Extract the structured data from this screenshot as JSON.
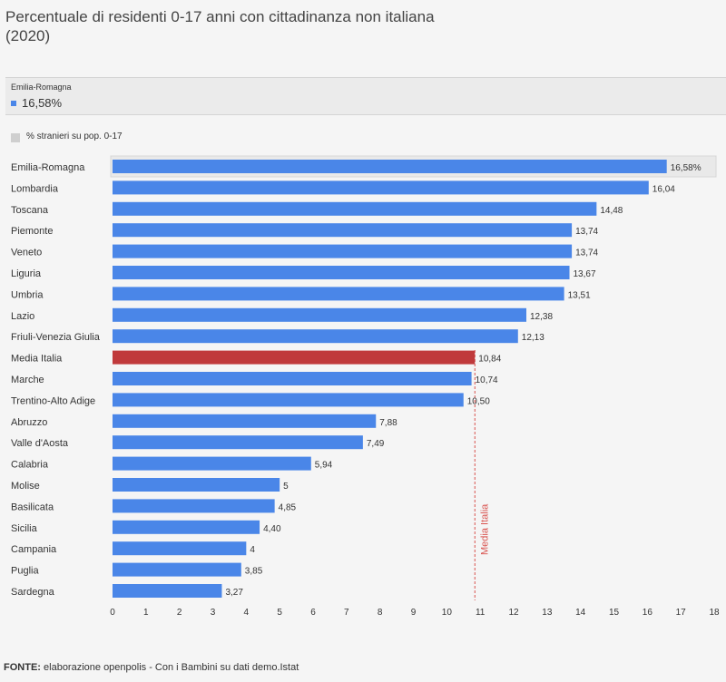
{
  "title": "Percentuale di residenti 0-17 anni con cittadinanza non italiana (2020)",
  "tooltip": {
    "region": "Emilia-Romagna",
    "value": "16,58%",
    "swatch_color": "#4a86e8"
  },
  "legend": {
    "label": "% stranieri su pop. 0-17",
    "swatch_color": "#cfcfcf"
  },
  "chart_data": {
    "type": "bar",
    "orientation": "horizontal",
    "categories": [
      "Emilia-Romagna",
      "Lombardia",
      "Toscana",
      "Piemonte",
      "Veneto",
      "Liguria",
      "Umbria",
      "Lazio",
      "Friuli-Venezia Giulia",
      "Media Italia",
      "Marche",
      "Trentino-Alto Adige",
      "Abruzzo",
      "Valle d'Aosta",
      "Calabria",
      "Molise",
      "Basilicata",
      "Sicilia",
      "Campania",
      "Puglia",
      "Sardegna"
    ],
    "values": [
      16.58,
      16.04,
      14.48,
      13.74,
      13.74,
      13.67,
      13.51,
      12.38,
      12.13,
      10.84,
      10.74,
      10.5,
      7.88,
      7.49,
      5.94,
      5,
      4.85,
      4.4,
      4,
      3.85,
      3.27
    ],
    "data_labels": [
      "16,58%",
      "16,04",
      "14,48",
      "13,74",
      "13,74",
      "13,67",
      "13,51",
      "12,38",
      "12,13",
      "10,84",
      "10,74",
      "10,50",
      "7,88",
      "7,49",
      "5,94",
      "5",
      "4,85",
      "4,40",
      "4",
      "3,85",
      "3,27"
    ],
    "xlim": [
      0,
      18
    ],
    "xticks": [
      0,
      1,
      2,
      3,
      4,
      5,
      6,
      7,
      8,
      9,
      10,
      11,
      12,
      13,
      14,
      15,
      16,
      17,
      18
    ],
    "bar_color": "#4a86e8",
    "highlight_color": "#c0393b",
    "highlight_category": "Media Italia",
    "selected_category": "Emilia-Romagna",
    "reference_line": {
      "value": 10.84,
      "label": "Media Italia",
      "color": "#d9534f"
    },
    "grid": false
  },
  "footer": {
    "source_label": "FONTE:",
    "source_text": "elaborazione openpolis - Con i Bambini su dati demo.Istat"
  }
}
